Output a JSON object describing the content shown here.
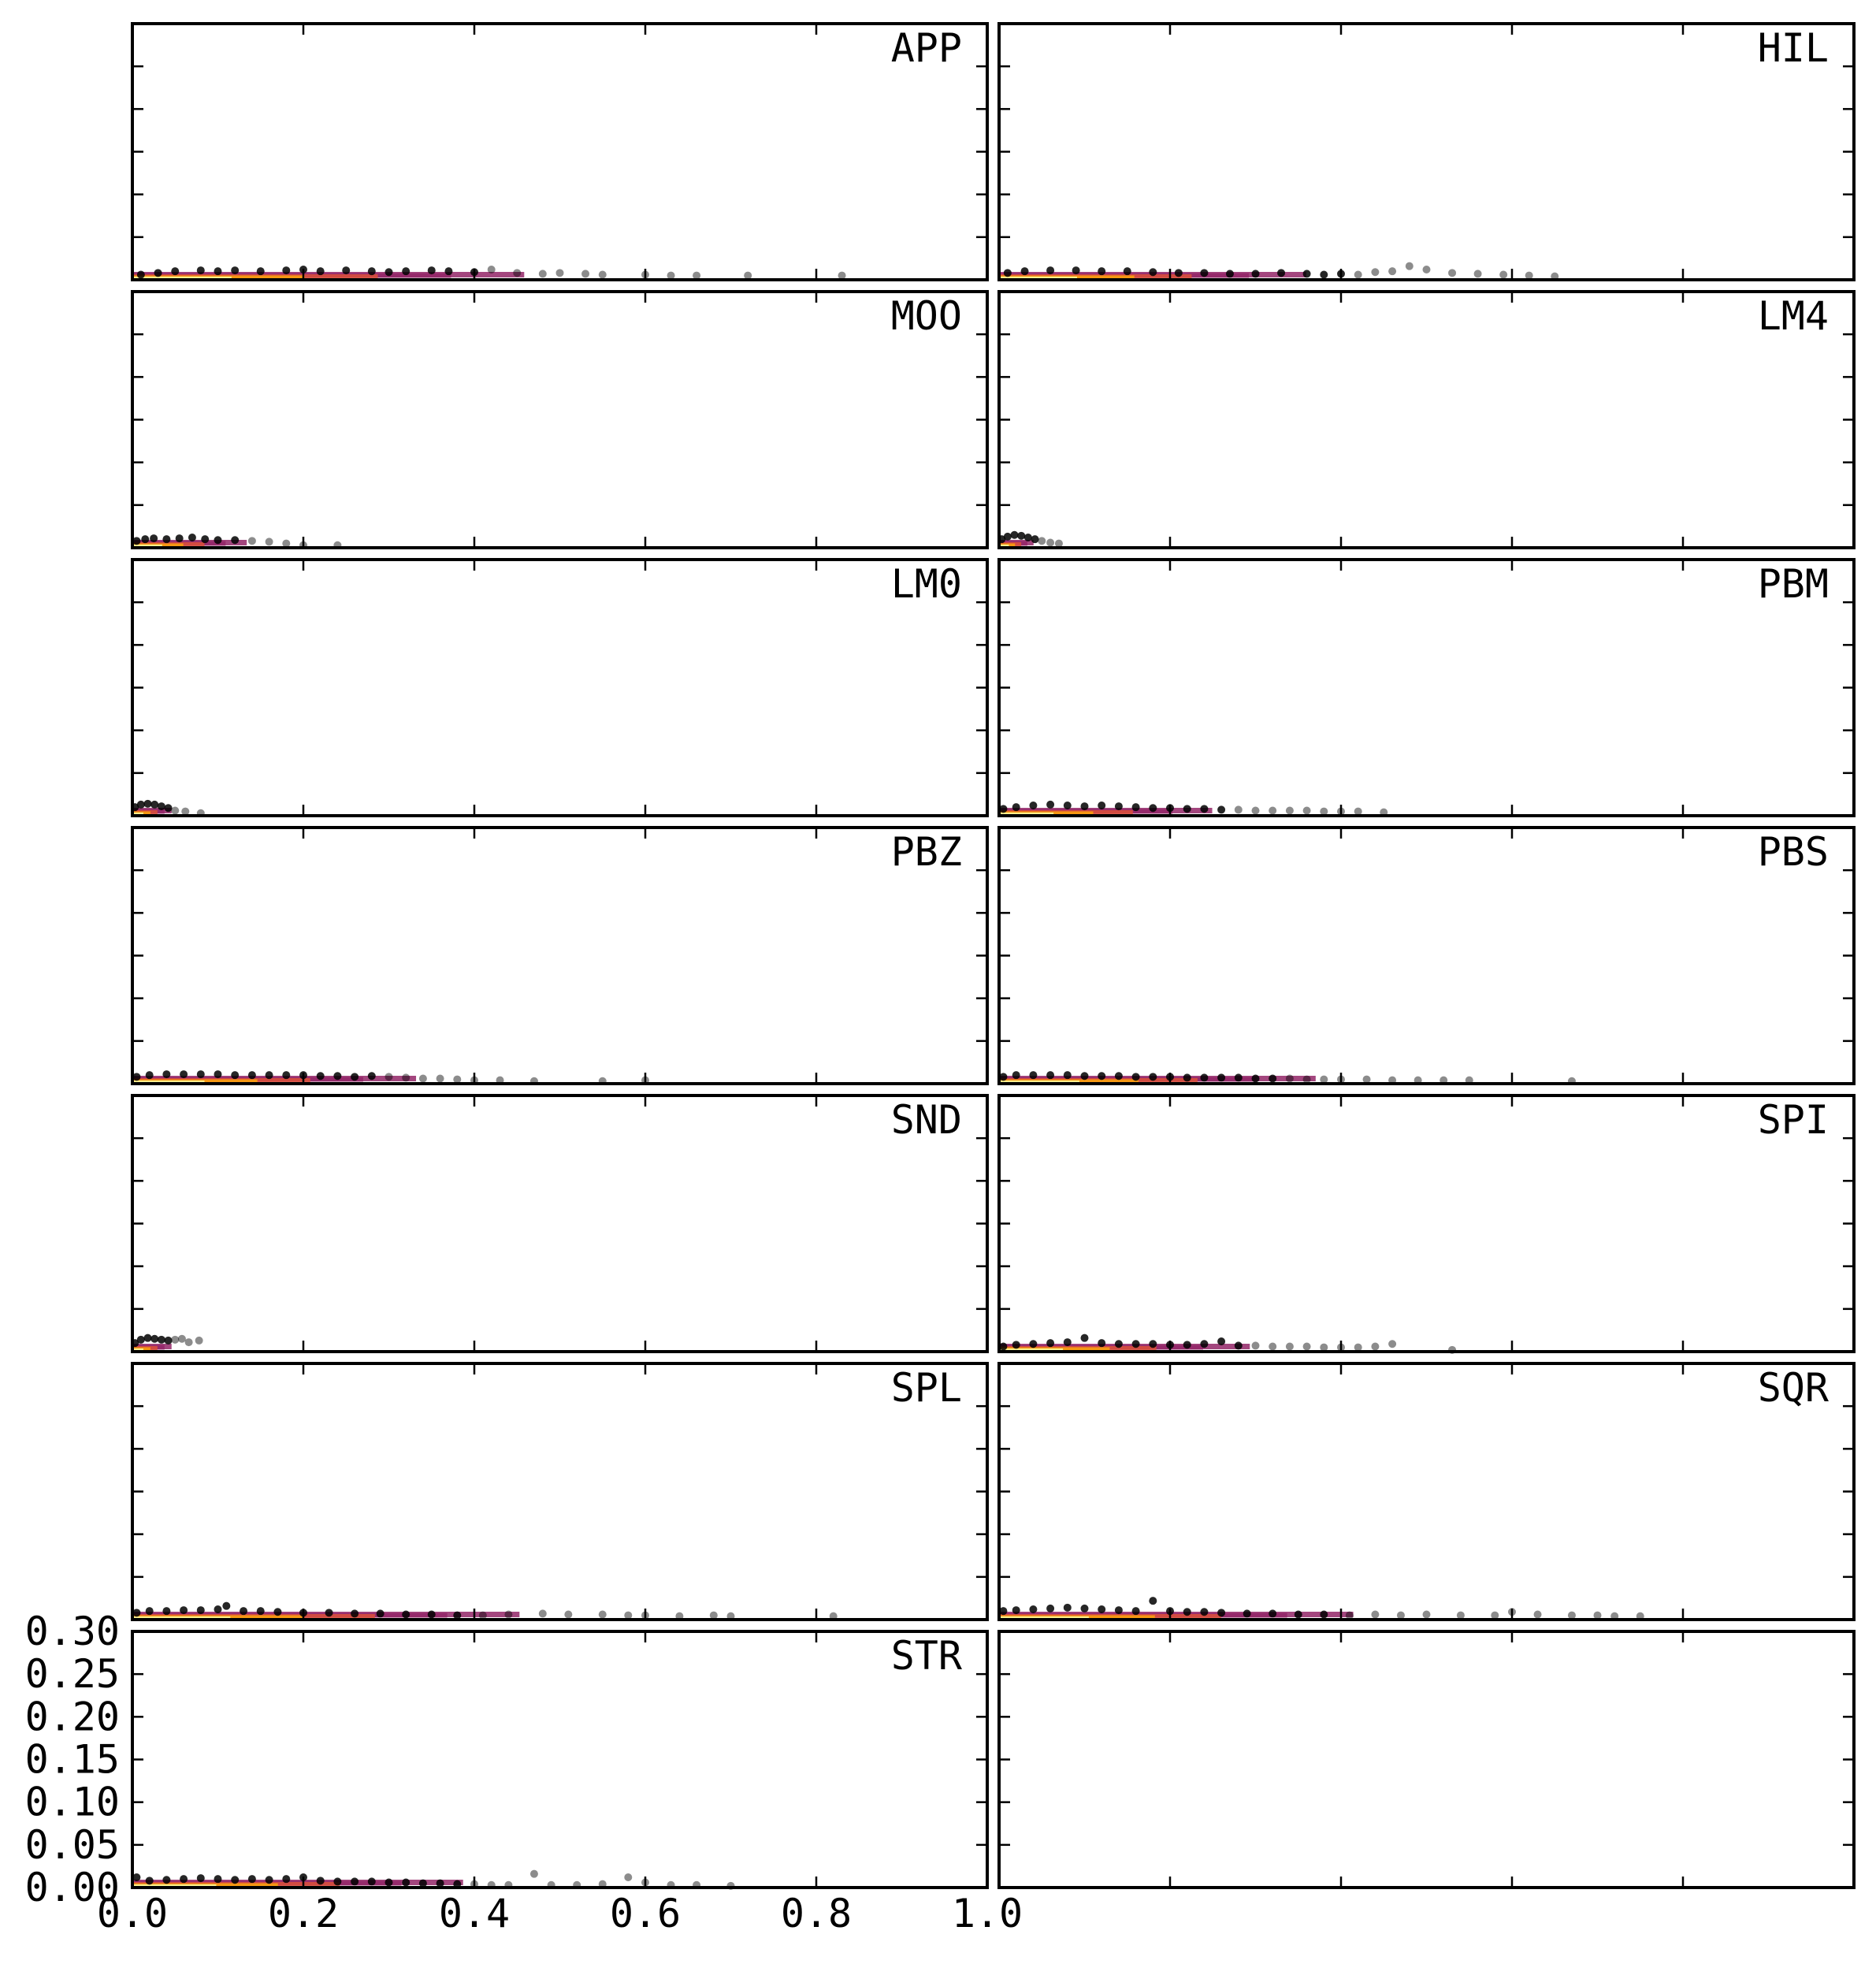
{
  "chart_data": {
    "type": "scatter",
    "layout": "7 rows x 2 columns of small multiples, shared axes",
    "xlim": [
      0.0,
      1.0
    ],
    "ylim": [
      0.0,
      0.3
    ],
    "x_ticks": [
      0.0,
      0.2,
      0.4,
      0.6,
      0.8,
      1.0
    ],
    "x_tick_labels": [
      "0.0",
      "0.2",
      "0.4",
      "0.6",
      "0.8",
      "1.0"
    ],
    "y_ticks": [
      0.0,
      0.05,
      0.1,
      0.15,
      0.2,
      0.25,
      0.3
    ],
    "y_tick_labels": [
      "0.00",
      "0.05",
      "0.10",
      "0.15",
      "0.20",
      "0.25",
      "0.30"
    ],
    "grid": false,
    "point_color": "#000000",
    "density_colormap": [
      "#000004",
      "#420a68",
      "#932667",
      "#dd513a",
      "#fca50a",
      "#fcffa4"
    ],
    "panels": [
      {
        "label": "APP",
        "x_extent": 0.83,
        "y_max": 0.012,
        "points": [
          [
            0.01,
            0.006
          ],
          [
            0.03,
            0.008
          ],
          [
            0.05,
            0.01
          ],
          [
            0.08,
            0.011
          ],
          [
            0.1,
            0.01
          ],
          [
            0.12,
            0.011
          ],
          [
            0.15,
            0.01
          ],
          [
            0.18,
            0.011
          ],
          [
            0.2,
            0.012
          ],
          [
            0.22,
            0.01
          ],
          [
            0.25,
            0.011
          ],
          [
            0.28,
            0.01
          ],
          [
            0.3,
            0.009
          ],
          [
            0.32,
            0.01
          ],
          [
            0.35,
            0.011
          ],
          [
            0.37,
            0.01
          ],
          [
            0.4,
            0.009
          ],
          [
            0.42,
            0.012
          ],
          [
            0.45,
            0.008
          ],
          [
            0.48,
            0.007
          ],
          [
            0.5,
            0.008
          ],
          [
            0.53,
            0.007
          ],
          [
            0.55,
            0.006
          ],
          [
            0.6,
            0.006
          ],
          [
            0.63,
            0.005
          ],
          [
            0.66,
            0.005
          ],
          [
            0.72,
            0.005
          ],
          [
            0.83,
            0.005
          ]
        ]
      },
      {
        "label": "HIL",
        "x_extent": 0.65,
        "y_max": 0.016,
        "points": [
          [
            0.01,
            0.008
          ],
          [
            0.03,
            0.01
          ],
          [
            0.06,
            0.011
          ],
          [
            0.09,
            0.011
          ],
          [
            0.12,
            0.01
          ],
          [
            0.15,
            0.01
          ],
          [
            0.18,
            0.009
          ],
          [
            0.21,
            0.008
          ],
          [
            0.24,
            0.008
          ],
          [
            0.27,
            0.007
          ],
          [
            0.3,
            0.007
          ],
          [
            0.33,
            0.008
          ],
          [
            0.36,
            0.007
          ],
          [
            0.38,
            0.006
          ],
          [
            0.4,
            0.007
          ],
          [
            0.42,
            0.006
          ],
          [
            0.44,
            0.009
          ],
          [
            0.46,
            0.01
          ],
          [
            0.48,
            0.016
          ],
          [
            0.5,
            0.012
          ],
          [
            0.53,
            0.008
          ],
          [
            0.56,
            0.007
          ],
          [
            0.59,
            0.006
          ],
          [
            0.62,
            0.005
          ],
          [
            0.65,
            0.004
          ]
        ]
      },
      {
        "label": "MOO",
        "x_extent": 0.24,
        "y_max": 0.012,
        "points": [
          [
            0.005,
            0.008
          ],
          [
            0.015,
            0.01
          ],
          [
            0.025,
            0.011
          ],
          [
            0.04,
            0.01
          ],
          [
            0.055,
            0.011
          ],
          [
            0.07,
            0.012
          ],
          [
            0.085,
            0.01
          ],
          [
            0.1,
            0.009
          ],
          [
            0.12,
            0.009
          ],
          [
            0.14,
            0.008
          ],
          [
            0.16,
            0.007
          ],
          [
            0.18,
            0.005
          ],
          [
            0.2,
            0.003
          ],
          [
            0.24,
            0.003
          ]
        ]
      },
      {
        "label": "LM4",
        "x_extent": 0.07,
        "y_max": 0.016,
        "points": [
          [
            0.003,
            0.01
          ],
          [
            0.01,
            0.013
          ],
          [
            0.018,
            0.015
          ],
          [
            0.026,
            0.014
          ],
          [
            0.034,
            0.012
          ],
          [
            0.042,
            0.01
          ],
          [
            0.05,
            0.008
          ],
          [
            0.06,
            0.006
          ],
          [
            0.07,
            0.005
          ]
        ]
      },
      {
        "label": "LM0",
        "x_extent": 0.08,
        "y_max": 0.014,
        "points": [
          [
            0.003,
            0.01
          ],
          [
            0.01,
            0.013
          ],
          [
            0.018,
            0.014
          ],
          [
            0.026,
            0.013
          ],
          [
            0.034,
            0.011
          ],
          [
            0.042,
            0.009
          ],
          [
            0.05,
            0.006
          ],
          [
            0.062,
            0.005
          ],
          [
            0.08,
            0.003
          ]
        ]
      },
      {
        "label": "PBM",
        "x_extent": 0.45,
        "y_max": 0.016,
        "points": [
          [
            0.005,
            0.008
          ],
          [
            0.02,
            0.01
          ],
          [
            0.04,
            0.012
          ],
          [
            0.06,
            0.013
          ],
          [
            0.08,
            0.012
          ],
          [
            0.1,
            0.011
          ],
          [
            0.12,
            0.012
          ],
          [
            0.14,
            0.011
          ],
          [
            0.16,
            0.01
          ],
          [
            0.18,
            0.009
          ],
          [
            0.2,
            0.009
          ],
          [
            0.22,
            0.008
          ],
          [
            0.24,
            0.008
          ],
          [
            0.26,
            0.007
          ],
          [
            0.28,
            0.007
          ],
          [
            0.3,
            0.006
          ],
          [
            0.32,
            0.006
          ],
          [
            0.34,
            0.006
          ],
          [
            0.36,
            0.006
          ],
          [
            0.38,
            0.005
          ],
          [
            0.4,
            0.005
          ],
          [
            0.42,
            0.005
          ],
          [
            0.45,
            0.004
          ]
        ]
      },
      {
        "label": "PBZ",
        "x_extent": 0.6,
        "y_max": 0.012,
        "points": [
          [
            0.005,
            0.008
          ],
          [
            0.02,
            0.01
          ],
          [
            0.04,
            0.011
          ],
          [
            0.06,
            0.011
          ],
          [
            0.08,
            0.011
          ],
          [
            0.1,
            0.011
          ],
          [
            0.12,
            0.01
          ],
          [
            0.14,
            0.01
          ],
          [
            0.16,
            0.01
          ],
          [
            0.18,
            0.01
          ],
          [
            0.2,
            0.01
          ],
          [
            0.22,
            0.009
          ],
          [
            0.24,
            0.009
          ],
          [
            0.26,
            0.008
          ],
          [
            0.28,
            0.009
          ],
          [
            0.3,
            0.008
          ],
          [
            0.32,
            0.007
          ],
          [
            0.34,
            0.006
          ],
          [
            0.36,
            0.006
          ],
          [
            0.38,
            0.005
          ],
          [
            0.4,
            0.004
          ],
          [
            0.43,
            0.004
          ],
          [
            0.47,
            0.003
          ],
          [
            0.55,
            0.003
          ],
          [
            0.6,
            0.004
          ]
        ]
      },
      {
        "label": "PBS",
        "x_extent": 0.67,
        "y_max": 0.011,
        "points": [
          [
            0.005,
            0.008
          ],
          [
            0.02,
            0.01
          ],
          [
            0.04,
            0.01
          ],
          [
            0.06,
            0.01
          ],
          [
            0.08,
            0.01
          ],
          [
            0.1,
            0.009
          ],
          [
            0.12,
            0.009
          ],
          [
            0.14,
            0.009
          ],
          [
            0.16,
            0.008
          ],
          [
            0.18,
            0.008
          ],
          [
            0.2,
            0.008
          ],
          [
            0.22,
            0.007
          ],
          [
            0.24,
            0.007
          ],
          [
            0.26,
            0.007
          ],
          [
            0.28,
            0.007
          ],
          [
            0.3,
            0.006
          ],
          [
            0.32,
            0.006
          ],
          [
            0.34,
            0.006
          ],
          [
            0.36,
            0.005
          ],
          [
            0.38,
            0.005
          ],
          [
            0.4,
            0.005
          ],
          [
            0.43,
            0.005
          ],
          [
            0.46,
            0.004
          ],
          [
            0.49,
            0.004
          ],
          [
            0.52,
            0.004
          ],
          [
            0.55,
            0.004
          ],
          [
            0.67,
            0.003
          ]
        ]
      },
      {
        "label": "SND",
        "x_extent": 0.08,
        "y_max": 0.018,
        "points": [
          [
            0.003,
            0.01
          ],
          [
            0.01,
            0.014
          ],
          [
            0.018,
            0.016
          ],
          [
            0.026,
            0.015
          ],
          [
            0.034,
            0.014
          ],
          [
            0.042,
            0.013
          ],
          [
            0.05,
            0.014
          ],
          [
            0.058,
            0.015
          ],
          [
            0.066,
            0.011
          ],
          [
            0.078,
            0.013
          ]
        ]
      },
      {
        "label": "SPI",
        "x_extent": 0.53,
        "y_max": 0.016,
        "points": [
          [
            0.005,
            0.006
          ],
          [
            0.02,
            0.008
          ],
          [
            0.04,
            0.009
          ],
          [
            0.06,
            0.01
          ],
          [
            0.08,
            0.011
          ],
          [
            0.1,
            0.016
          ],
          [
            0.12,
            0.01
          ],
          [
            0.14,
            0.009
          ],
          [
            0.16,
            0.009
          ],
          [
            0.18,
            0.009
          ],
          [
            0.2,
            0.008
          ],
          [
            0.22,
            0.008
          ],
          [
            0.24,
            0.009
          ],
          [
            0.26,
            0.012
          ],
          [
            0.28,
            0.007
          ],
          [
            0.3,
            0.007
          ],
          [
            0.32,
            0.006
          ],
          [
            0.34,
            0.006
          ],
          [
            0.36,
            0.006
          ],
          [
            0.38,
            0.005
          ],
          [
            0.4,
            0.005
          ],
          [
            0.42,
            0.005
          ],
          [
            0.44,
            0.006
          ],
          [
            0.46,
            0.009
          ],
          [
            0.53,
            0.002
          ]
        ]
      },
      {
        "label": "SPL",
        "x_extent": 0.82,
        "y_max": 0.016,
        "points": [
          [
            0.005,
            0.008
          ],
          [
            0.02,
            0.01
          ],
          [
            0.04,
            0.01
          ],
          [
            0.06,
            0.011
          ],
          [
            0.08,
            0.011
          ],
          [
            0.1,
            0.012
          ],
          [
            0.11,
            0.016
          ],
          [
            0.13,
            0.01
          ],
          [
            0.15,
            0.01
          ],
          [
            0.17,
            0.009
          ],
          [
            0.2,
            0.008
          ],
          [
            0.23,
            0.008
          ],
          [
            0.26,
            0.007
          ],
          [
            0.29,
            0.007
          ],
          [
            0.32,
            0.006
          ],
          [
            0.35,
            0.006
          ],
          [
            0.38,
            0.005
          ],
          [
            0.41,
            0.005
          ],
          [
            0.44,
            0.006
          ],
          [
            0.48,
            0.007
          ],
          [
            0.51,
            0.006
          ],
          [
            0.55,
            0.006
          ],
          [
            0.58,
            0.005
          ],
          [
            0.6,
            0.005
          ],
          [
            0.64,
            0.004
          ],
          [
            0.68,
            0.005
          ],
          [
            0.7,
            0.004
          ],
          [
            0.82,
            0.004
          ]
        ]
      },
      {
        "label": "SQR",
        "x_extent": 0.75,
        "y_max": 0.022,
        "points": [
          [
            0.005,
            0.01
          ],
          [
            0.02,
            0.011
          ],
          [
            0.04,
            0.012
          ],
          [
            0.06,
            0.013
          ],
          [
            0.08,
            0.014
          ],
          [
            0.1,
            0.013
          ],
          [
            0.12,
            0.012
          ],
          [
            0.14,
            0.011
          ],
          [
            0.16,
            0.01
          ],
          [
            0.18,
            0.022
          ],
          [
            0.2,
            0.01
          ],
          [
            0.22,
            0.009
          ],
          [
            0.24,
            0.009
          ],
          [
            0.26,
            0.008
          ],
          [
            0.29,
            0.007
          ],
          [
            0.32,
            0.007
          ],
          [
            0.35,
            0.006
          ],
          [
            0.38,
            0.006
          ],
          [
            0.41,
            0.005
          ],
          [
            0.44,
            0.006
          ],
          [
            0.47,
            0.005
          ],
          [
            0.5,
            0.006
          ],
          [
            0.54,
            0.005
          ],
          [
            0.58,
            0.005
          ],
          [
            0.6,
            0.009
          ],
          [
            0.63,
            0.006
          ],
          [
            0.67,
            0.005
          ],
          [
            0.7,
            0.005
          ],
          [
            0.72,
            0.004
          ],
          [
            0.75,
            0.004
          ]
        ]
      },
      {
        "label": "STR",
        "x_extent": 0.7,
        "y_max": 0.016,
        "points": [
          [
            0.005,
            0.012
          ],
          [
            0.02,
            0.008
          ],
          [
            0.04,
            0.009
          ],
          [
            0.06,
            0.01
          ],
          [
            0.08,
            0.011
          ],
          [
            0.1,
            0.01
          ],
          [
            0.12,
            0.009
          ],
          [
            0.14,
            0.01
          ],
          [
            0.16,
            0.009
          ],
          [
            0.18,
            0.01
          ],
          [
            0.2,
            0.012
          ],
          [
            0.22,
            0.008
          ],
          [
            0.24,
            0.007
          ],
          [
            0.26,
            0.007
          ],
          [
            0.28,
            0.007
          ],
          [
            0.3,
            0.006
          ],
          [
            0.32,
            0.006
          ],
          [
            0.34,
            0.005
          ],
          [
            0.36,
            0.005
          ],
          [
            0.38,
            0.004
          ],
          [
            0.4,
            0.004
          ],
          [
            0.42,
            0.003
          ],
          [
            0.44,
            0.003
          ],
          [
            0.47,
            0.016
          ],
          [
            0.49,
            0.003
          ],
          [
            0.52,
            0.003
          ],
          [
            0.55,
            0.004
          ],
          [
            0.58,
            0.012
          ],
          [
            0.6,
            0.006
          ],
          [
            0.63,
            0.003
          ],
          [
            0.66,
            0.003
          ],
          [
            0.7,
            0.002
          ]
        ]
      },
      {
        "label": "",
        "x_extent": 0,
        "y_max": 0,
        "points": []
      }
    ]
  }
}
